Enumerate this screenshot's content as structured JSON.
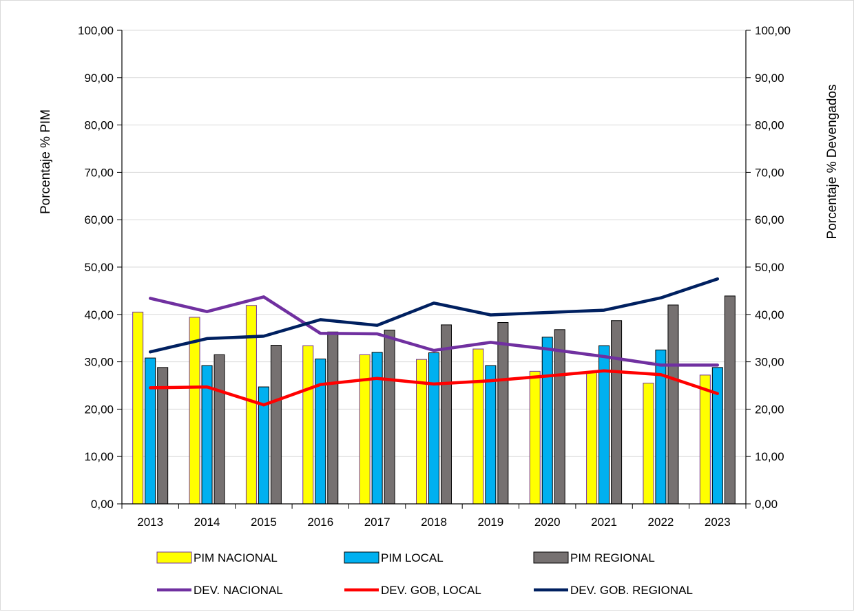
{
  "chart_data": {
    "type": "bar",
    "categories": [
      "2013",
      "2014",
      "2015",
      "2016",
      "2017",
      "2018",
      "2019",
      "2020",
      "2021",
      "2022",
      "2023"
    ],
    "ylabel": "Porcentaje % PIM",
    "y2label": "Porcentaje % Devengados",
    "ylim": [
      0,
      100
    ],
    "y2lim": [
      0,
      100
    ],
    "yticks": [
      "0,00",
      "10,00",
      "20,00",
      "30,00",
      "40,00",
      "50,00",
      "60,00",
      "70,00",
      "80,00",
      "90,00",
      "100,00"
    ],
    "grid": true,
    "legend_position": "bottom",
    "bar_series": [
      {
        "name": "PIM NACIONAL",
        "color": "#ffff00",
        "stroke": "#7030a0",
        "values": [
          40.5,
          39.4,
          41.9,
          33.4,
          31.5,
          30.5,
          32.7,
          28.0,
          27.8,
          25.5,
          27.2
        ]
      },
      {
        "name": "PIM LOCAL",
        "color": "#00b0f0",
        "stroke": "#000000",
        "values": [
          30.8,
          29.2,
          24.7,
          30.6,
          32.0,
          31.9,
          29.2,
          35.2,
          33.4,
          32.5,
          28.8
        ]
      },
      {
        "name": "PIM REGIONAL",
        "color": "#767171",
        "stroke": "#000000",
        "values": [
          28.8,
          31.5,
          33.5,
          36.3,
          36.7,
          37.8,
          38.3,
          36.8,
          38.7,
          42.0,
          43.9
        ]
      }
    ],
    "line_series": [
      {
        "name": "DEV. NACIONAL",
        "color": "#7030a0",
        "values": [
          43.4,
          40.6,
          43.7,
          36.0,
          35.9,
          32.4,
          34.1,
          32.7,
          31.1,
          29.3,
          29.3
        ]
      },
      {
        "name": "DEV. GOB, LOCAL",
        "color": "#ff0000",
        "values": [
          24.5,
          24.7,
          20.9,
          25.2,
          26.5,
          25.3,
          26.0,
          27.0,
          28.1,
          27.3,
          23.3
        ]
      },
      {
        "name": "DEV. GOB. REGIONAL",
        "color": "#002060",
        "values": [
          32.1,
          34.9,
          35.4,
          38.9,
          37.7,
          42.4,
          39.9,
          40.4,
          40.9,
          43.5,
          47.5
        ]
      }
    ]
  }
}
